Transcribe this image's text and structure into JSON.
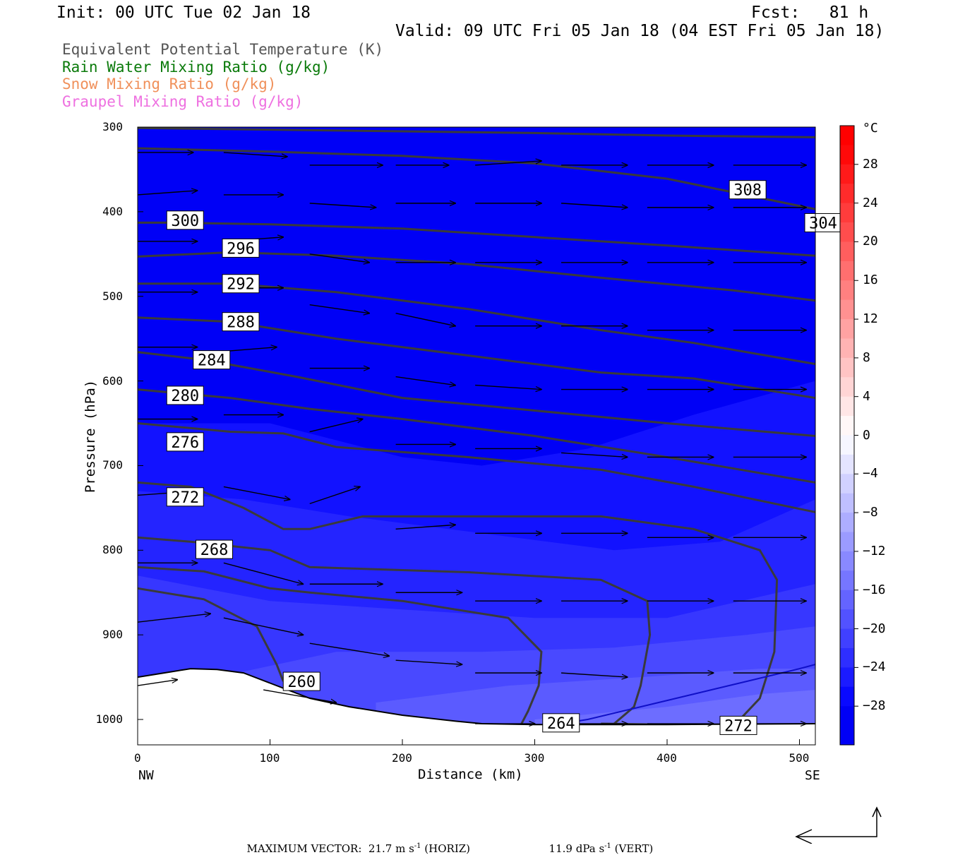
{
  "header": {
    "init": "Init: 00 UTC Tue 02 Jan 18",
    "fcst": "Fcst:   81 h",
    "valid": "Valid: 09 UTC Fri 05 Jan 18 (04 EST Fri 05 Jan 18)"
  },
  "legend": [
    {
      "label": "Equivalent Potential Temperature (K)",
      "color": "#555555"
    },
    {
      "label": "Rain Water Mixing Ratio (g/kg)",
      "color": "#0a7a0a"
    },
    {
      "label": "Snow Mixing Ratio (g/kg)",
      "color": "#f0905a"
    },
    {
      "label": "Graupel Mixing Ratio (g/kg)",
      "color": "#ee70e0"
    }
  ],
  "footer": {
    "max_vector": "MAXIMUM VECTOR:  21.7 m s",
    "horiz": " (HORIZ)",
    "vert_val": "11.9 dPa s",
    "vert": " (VERT)",
    "exp": "-1"
  },
  "chart_data": {
    "type": "cross-section",
    "xlabel": "Distance (km)",
    "ylabel": "Pressure (hPa)",
    "x_range": [
      0,
      512
    ],
    "y_range": [
      300,
      1030
    ],
    "x_ticks": [
      0,
      100,
      200,
      300,
      400,
      500
    ],
    "y_ticks": [
      300,
      400,
      500,
      600,
      700,
      800,
      900,
      1000
    ],
    "x_end_labels": {
      "left": "NW",
      "right": "SE"
    },
    "colorbar": {
      "unit": "°C",
      "labels": [
        "28",
        "24",
        "20",
        "16",
        "12",
        "8",
        "4",
        "0",
        "−4",
        "−8",
        "−12",
        "−16",
        "−20",
        "−24",
        "−28"
      ],
      "levels": [
        28,
        24,
        20,
        16,
        12,
        8,
        4,
        0,
        -4,
        -8,
        -12,
        -16,
        -20,
        -24,
        -28
      ]
    },
    "temperature_zones": [
      {
        "t": -30,
        "top": [
          [
            0,
            300
          ],
          [
            512,
            300
          ]
        ]
      },
      {
        "t": -28,
        "top": [
          [
            0,
            555
          ],
          [
            120,
            560
          ],
          [
            220,
            590
          ],
          [
            300,
            610
          ],
          [
            400,
            600
          ],
          [
            512,
            560
          ]
        ]
      },
      {
        "t": -26,
        "top": [
          [
            0,
            650
          ],
          [
            100,
            650
          ],
          [
            200,
            690
          ],
          [
            260,
            700
          ],
          [
            340,
            680
          ],
          [
            420,
            640
          ],
          [
            512,
            600
          ]
        ]
      },
      {
        "t": -24,
        "top": [
          [
            0,
            730
          ],
          [
            80,
            740
          ],
          [
            160,
            760
          ],
          [
            260,
            780
          ],
          [
            360,
            800
          ],
          [
            440,
            790
          ],
          [
            512,
            740
          ]
        ]
      },
      {
        "t": -22,
        "top": [
          [
            0,
            830
          ],
          [
            100,
            860
          ],
          [
            200,
            870
          ],
          [
            300,
            880
          ],
          [
            400,
            880
          ],
          [
            512,
            840
          ]
        ]
      },
      {
        "t": -20,
        "top": [
          [
            60,
            950
          ],
          [
            150,
            920
          ],
          [
            260,
            920
          ],
          [
            360,
            915
          ],
          [
            460,
            900
          ],
          [
            512,
            890
          ]
        ]
      },
      {
        "t": -18,
        "top": [
          [
            180,
            980
          ],
          [
            280,
            960
          ],
          [
            380,
            950
          ],
          [
            470,
            940
          ],
          [
            512,
            940
          ]
        ]
      },
      {
        "t": -16,
        "top": [
          [
            300,
            1000
          ],
          [
            400,
            985
          ],
          [
            470,
            970
          ],
          [
            512,
            965
          ]
        ]
      }
    ],
    "theta_e_contours": [
      {
        "value": 308,
        "points": [
          [
            0,
            301
          ],
          [
            100,
            303
          ],
          [
            200,
            305
          ],
          [
            300,
            307
          ],
          [
            400,
            310
          ],
          [
            512,
            312
          ]
        ],
        "label_at": [
          447,
          374
        ]
      },
      {
        "value": 304,
        "points": [
          [
            0,
            325
          ],
          [
            100,
            329
          ],
          [
            200,
            334
          ],
          [
            300,
            343
          ],
          [
            400,
            361
          ],
          [
            512,
            397
          ]
        ],
        "label_at": [
          504,
          413
        ]
      },
      {
        "value": 300,
        "points": [
          [
            0,
            413
          ],
          [
            30,
            413
          ],
          [
            100,
            415
          ],
          [
            200,
            420
          ],
          [
            300,
            430
          ],
          [
            400,
            440
          ],
          [
            512,
            452
          ]
        ],
        "label_at": [
          22,
          410
        ]
      },
      {
        "value": 296,
        "points": [
          [
            0,
            453
          ],
          [
            70,
            448
          ],
          [
            150,
            452
          ],
          [
            250,
            462
          ],
          [
            350,
            478
          ],
          [
            450,
            493
          ],
          [
            512,
            505
          ]
        ],
        "label_at": [
          64,
          443
        ]
      },
      {
        "value": 292,
        "points": [
          [
            0,
            485
          ],
          [
            70,
            485
          ],
          [
            150,
            495
          ],
          [
            250,
            515
          ],
          [
            350,
            540
          ],
          [
            420,
            555
          ],
          [
            512,
            580
          ]
        ],
        "label_at": [
          64,
          485
        ]
      },
      {
        "value": 288,
        "points": [
          [
            0,
            525
          ],
          [
            70,
            530
          ],
          [
            150,
            550
          ],
          [
            250,
            570
          ],
          [
            350,
            590
          ],
          [
            420,
            597
          ],
          [
            512,
            620
          ]
        ],
        "label_at": [
          64,
          530
        ]
      },
      {
        "value": 284,
        "points": [
          [
            0,
            566
          ],
          [
            50,
            575
          ],
          [
            120,
            595
          ],
          [
            200,
            620
          ],
          [
            300,
            635
          ],
          [
            400,
            650
          ],
          [
            512,
            665
          ]
        ],
        "label_at": [
          42,
          575
        ]
      },
      {
        "value": 280,
        "points": [
          [
            0,
            610
          ],
          [
            70,
            620
          ],
          [
            130,
            633
          ],
          [
            200,
            645
          ],
          [
            300,
            665
          ],
          [
            400,
            690
          ],
          [
            512,
            720
          ]
        ],
        "label_at": [
          22,
          617
        ]
      },
      {
        "value": 276,
        "points": [
          [
            0,
            650
          ],
          [
            70,
            660
          ],
          [
            110,
            662
          ],
          [
            150,
            678
          ],
          [
            250,
            690
          ],
          [
            350,
            705
          ],
          [
            420,
            725
          ],
          [
            512,
            755
          ]
        ],
        "label_at": [
          22,
          672
        ]
      },
      {
        "value": 272,
        "points": [
          [
            0,
            720
          ],
          [
            40,
            725
          ],
          [
            80,
            750
          ],
          [
            110,
            775
          ],
          [
            130,
            775
          ],
          [
            170,
            760
          ],
          [
            250,
            760
          ],
          [
            350,
            760
          ],
          [
            420,
            775
          ],
          [
            470,
            800
          ],
          [
            483,
            835
          ],
          [
            481,
            920
          ],
          [
            470,
            975
          ],
          [
            455,
            1000
          ],
          [
            440,
            1008
          ]
        ],
        "label_at": [
          22,
          737
        ]
      },
      {
        "value": 268,
        "points": [
          [
            0,
            785
          ],
          [
            40,
            790
          ],
          [
            100,
            800
          ],
          [
            130,
            820
          ],
          [
            250,
            826
          ],
          [
            350,
            835
          ],
          [
            385,
            860
          ],
          [
            387,
            900
          ],
          [
            380,
            960
          ],
          [
            375,
            985
          ],
          [
            360,
            1005
          ]
        ],
        "label_at": [
          44,
          799
        ]
      },
      {
        "value": 264,
        "points": [
          [
            0,
            820
          ],
          [
            50,
            825
          ],
          [
            100,
            845
          ],
          [
            130,
            850
          ],
          [
            200,
            860
          ],
          [
            280,
            880
          ],
          [
            305,
            920
          ],
          [
            303,
            960
          ],
          [
            295,
            990
          ],
          [
            290,
            1005
          ]
        ],
        "label_at": [
          306,
          1004
        ]
      },
      {
        "value": 260,
        "points": [
          [
            0,
            845
          ],
          [
            50,
            858
          ],
          [
            90,
            890
          ],
          [
            105,
            935
          ],
          [
            110,
            955
          ]
        ],
        "label_at": [
          110,
          955
        ]
      },
      {
        "value": 272,
        "points": [
          [
            350,
            1005
          ],
          [
            400,
            1006
          ],
          [
            512,
            1006
          ]
        ],
        "label_at": [
          440,
          1007
        ]
      }
    ],
    "wind_arrows": [
      [
        0,
        330,
        42,
        330
      ],
      [
        65,
        330,
        113,
        335
      ],
      [
        130,
        345,
        185,
        345
      ],
      [
        195,
        345,
        235,
        345
      ],
      [
        255,
        345,
        305,
        340
      ],
      [
        320,
        345,
        370,
        345
      ],
      [
        385,
        345,
        435,
        345
      ],
      [
        450,
        345,
        505,
        345
      ],
      [
        0,
        380,
        45,
        375
      ],
      [
        65,
        380,
        110,
        380
      ],
      [
        130,
        390,
        180,
        395
      ],
      [
        195,
        390,
        240,
        390
      ],
      [
        255,
        390,
        305,
        390
      ],
      [
        320,
        390,
        370,
        395
      ],
      [
        385,
        395,
        435,
        395
      ],
      [
        450,
        395,
        505,
        395
      ],
      [
        0,
        435,
        45,
        435
      ],
      [
        65,
        435,
        110,
        430
      ],
      [
        130,
        450,
        175,
        460
      ],
      [
        195,
        460,
        240,
        460
      ],
      [
        255,
        460,
        305,
        460
      ],
      [
        320,
        460,
        370,
        460
      ],
      [
        385,
        460,
        435,
        460
      ],
      [
        450,
        460,
        505,
        460
      ],
      [
        0,
        495,
        45,
        495
      ],
      [
        65,
        490,
        110,
        490
      ],
      [
        130,
        510,
        175,
        520
      ],
      [
        195,
        520,
        240,
        535
      ],
      [
        255,
        535,
        305,
        535
      ],
      [
        320,
        535,
        370,
        535
      ],
      [
        385,
        540,
        435,
        540
      ],
      [
        450,
        540,
        505,
        540
      ],
      [
        0,
        560,
        45,
        560
      ],
      [
        65,
        565,
        105,
        560
      ],
      [
        130,
        585,
        175,
        585
      ],
      [
        195,
        595,
        240,
        605
      ],
      [
        255,
        605,
        305,
        610
      ],
      [
        320,
        610,
        370,
        610
      ],
      [
        385,
        610,
        435,
        610
      ],
      [
        450,
        610,
        505,
        610
      ],
      [
        0,
        645,
        45,
        645
      ],
      [
        65,
        640,
        110,
        640
      ],
      [
        130,
        660,
        170,
        645
      ],
      [
        195,
        675,
        240,
        675
      ],
      [
        255,
        680,
        305,
        680
      ],
      [
        320,
        685,
        370,
        690
      ],
      [
        385,
        690,
        435,
        690
      ],
      [
        450,
        690,
        505,
        690
      ],
      [
        0,
        735,
        45,
        730
      ],
      [
        65,
        725,
        115,
        740
      ],
      [
        130,
        745,
        168,
        725
      ],
      [
        195,
        775,
        240,
        770
      ],
      [
        255,
        780,
        305,
        780
      ],
      [
        320,
        780,
        370,
        780
      ],
      [
        385,
        785,
        435,
        785
      ],
      [
        450,
        785,
        505,
        785
      ],
      [
        0,
        815,
        45,
        815
      ],
      [
        65,
        815,
        125,
        840
      ],
      [
        130,
        840,
        185,
        840
      ],
      [
        195,
        850,
        245,
        850
      ],
      [
        255,
        860,
        305,
        860
      ],
      [
        320,
        860,
        370,
        860
      ],
      [
        385,
        860,
        435,
        860
      ],
      [
        450,
        860,
        505,
        860
      ],
      [
        0,
        885,
        55,
        875
      ],
      [
        65,
        880,
        125,
        900
      ],
      [
        130,
        910,
        190,
        925
      ],
      [
        195,
        930,
        245,
        935
      ],
      [
        255,
        945,
        305,
        945
      ],
      [
        320,
        945,
        370,
        950
      ],
      [
        385,
        945,
        435,
        945
      ],
      [
        450,
        945,
        505,
        945
      ],
      [
        0,
        960,
        30,
        953
      ],
      [
        95,
        965,
        150,
        980
      ],
      [
        255,
        1005,
        300,
        1005
      ],
      [
        320,
        1005,
        370,
        1005
      ],
      [
        385,
        1005,
        435,
        1005
      ],
      [
        450,
        1005,
        505,
        1005
      ]
    ],
    "terrain": [
      [
        0,
        950
      ],
      [
        20,
        945
      ],
      [
        40,
        940
      ],
      [
        60,
        941
      ],
      [
        80,
        945
      ],
      [
        100,
        957
      ],
      [
        130,
        975
      ],
      [
        160,
        985
      ],
      [
        200,
        995
      ],
      [
        240,
        1002
      ],
      [
        260,
        1005
      ],
      [
        300,
        1006
      ],
      [
        400,
        1006
      ],
      [
        512,
        1005
      ]
    ],
    "freezing_line": [
      [
        320,
        1005
      ],
      [
        340,
        1000
      ],
      [
        380,
        985
      ],
      [
        420,
        970
      ],
      [
        460,
        955
      ],
      [
        500,
        940
      ],
      [
        512,
        935
      ]
    ]
  }
}
